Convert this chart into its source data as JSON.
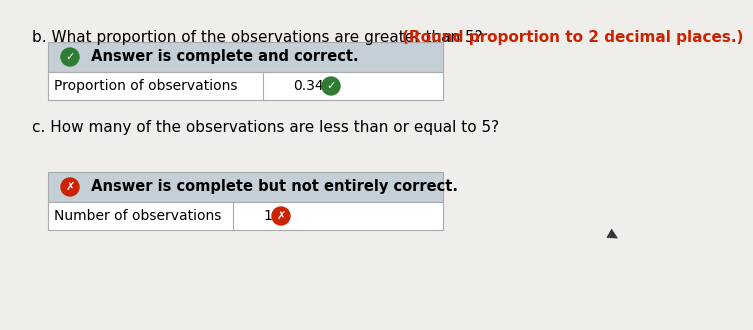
{
  "bg_color": "#f0eeeb",
  "box_header_bg": "#c5cfd8",
  "box_row_bg": "#ffffff",
  "box_row_bg2": "#e8eaed",
  "border_color": "#aaaaaa",
  "question_b_normal": "b. What proportion of the observations are greater than 5? ",
  "question_b_bold": "(Round proportion to 2 decimal places.)",
  "question_b_bold_color": "#cc2200",
  "box1_header_text": " Answer is complete and correct.",
  "box1_row_label": "Proportion of observations",
  "box1_row_value": "0.34",
  "box1_check_color": "#2e7d32",
  "question_c": "c. How many of the observations are less than or equal to 5?",
  "box2_header_text": " Answer is complete but not entirely correct.",
  "box2_row_label": "Number of observations",
  "box2_row_value": "1",
  "box2_x_color": "#cc2200",
  "font_size_q": 11,
  "font_size_header": 10.5,
  "font_size_row": 10
}
